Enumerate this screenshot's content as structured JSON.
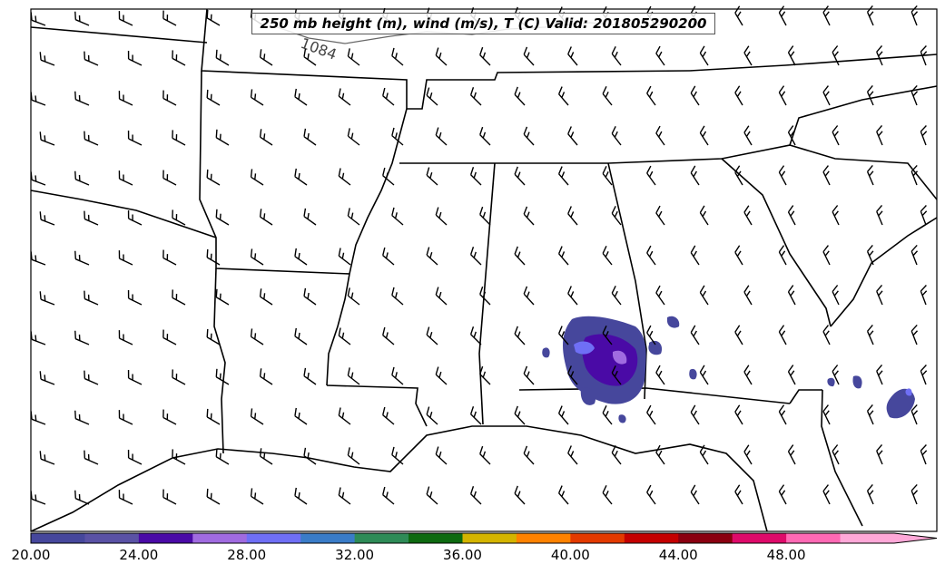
{
  "title": "250 mb height (m), wind (m/s), T (C) Valid: 201805290200",
  "contour_label": "1084",
  "colorbar": {
    "tick_labels": [
      "20.00",
      "24.00",
      "28.00",
      "32.00",
      "36.00",
      "40.00",
      "44.00",
      "48.00"
    ],
    "min": 20,
    "max": 52,
    "step": 2,
    "colors": [
      "#46479c",
      "#5a52a5",
      "#4a0aa6",
      "#a06be0",
      "#6f6ff5",
      "#3a7cc8",
      "#2e8b57",
      "#0d6a10",
      "#d4b400",
      "#ff8200",
      "#e33a00",
      "#c40000",
      "#8a0010",
      "#de0a6a",
      "#ff69b4",
      "#ffa8d8"
    ],
    "extend": "max"
  },
  "colors": {
    "land": "#ffffff",
    "boundary": "#000000",
    "contour": "#555555",
    "fill_low": "#46479c",
    "fill_mid": "#4a0aa6",
    "fill_high": "#6f6ff5"
  }
}
